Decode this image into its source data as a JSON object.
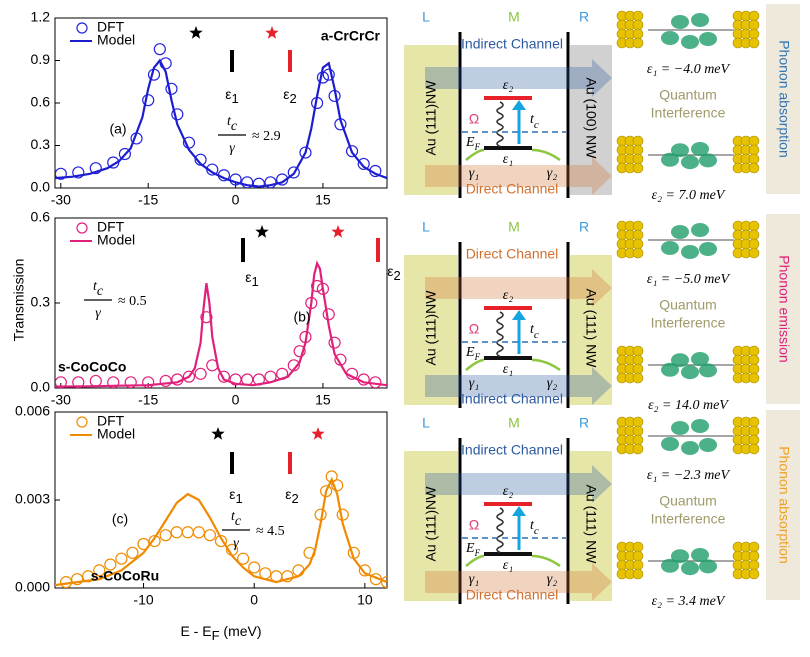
{
  "chart_data": [
    {
      "type": "line",
      "panel_label": "(a)",
      "molecule": "a-CrCrCr",
      "ratio": {
        "numerator": "t",
        "numerator_sub": "c",
        "denominator": "γ",
        "relation": "≈ 2.9"
      },
      "levels": [
        {
          "symbol": "ε",
          "sub": "1",
          "color": "#000000"
        },
        {
          "symbol": "ε",
          "sub": "2",
          "color": "#e8202a"
        }
      ],
      "stars": [
        {
          "color": "#000000"
        },
        {
          "color": "#e8202a"
        }
      ],
      "xlim": [
        -31,
        26
      ],
      "ylim": [
        0,
        1.2
      ],
      "xticks": [
        -30,
        -15,
        0,
        15
      ],
      "yticks": [
        {
          "value": 0,
          "label": "0.0"
        },
        0.3,
        0.6,
        0.9,
        1.2
      ],
      "legend": "upper left",
      "series": [
        {
          "name": "DFT",
          "color": "#2424e0",
          "marker": "circle",
          "x": [
            -30,
            -27,
            -24,
            -21,
            -19,
            -17,
            -15,
            -14,
            -13,
            -12,
            -11,
            -10,
            -8,
            -6,
            -4,
            -2,
            0,
            2,
            4,
            6,
            8,
            10,
            12,
            14,
            15,
            16,
            17,
            18,
            20,
            22,
            24
          ],
          "values": [
            0.1,
            0.11,
            0.14,
            0.18,
            0.24,
            0.35,
            0.62,
            0.8,
            0.98,
            0.88,
            0.7,
            0.52,
            0.32,
            0.2,
            0.13,
            0.09,
            0.06,
            0.04,
            0.03,
            0.04,
            0.06,
            0.11,
            0.25,
            0.6,
            0.78,
            0.8,
            0.65,
            0.45,
            0.26,
            0.17,
            0.12
          ]
        },
        {
          "name": "Model",
          "color": "#1c1cd0",
          "x": [
            -31,
            -28,
            -25,
            -22,
            -20,
            -18,
            -16,
            -15,
            -14,
            -13,
            -12,
            -11,
            -10,
            -8,
            -6,
            -4,
            -2,
            0,
            2,
            4,
            6,
            8,
            10,
            12,
            13,
            14,
            15,
            16,
            17,
            18,
            20,
            22,
            24,
            26
          ],
          "values": [
            0.07,
            0.08,
            0.1,
            0.14,
            0.19,
            0.28,
            0.5,
            0.7,
            0.85,
            0.9,
            0.82,
            0.62,
            0.45,
            0.27,
            0.17,
            0.11,
            0.07,
            0.04,
            0.02,
            0.01,
            0.02,
            0.04,
            0.1,
            0.25,
            0.42,
            0.65,
            0.85,
            0.88,
            0.7,
            0.48,
            0.25,
            0.15,
            0.1,
            0.07
          ]
        }
      ]
    },
    {
      "type": "line",
      "panel_label": "(b)",
      "molecule": "s-CoCoCo",
      "ylabel": "Transmission",
      "ratio": {
        "numerator": "t",
        "numerator_sub": "c",
        "denominator": "γ",
        "relation": "≈ 0.5"
      },
      "levels": [
        {
          "symbol": "ε",
          "sub": "1",
          "color": "#000000"
        },
        {
          "symbol": "ε",
          "sub": "2",
          "color": "#e8202a"
        }
      ],
      "stars": [
        {
          "color": "#000000"
        },
        {
          "color": "#e8202a"
        }
      ],
      "xlim": [
        -31,
        26
      ],
      "ylim": [
        0,
        0.6
      ],
      "xticks": [
        -30,
        -15,
        0,
        15
      ],
      "yticks": [
        {
          "value": 0,
          "label": "0.0"
        },
        0.3,
        0.6
      ],
      "legend": "upper left",
      "series": [
        {
          "name": "DFT",
          "color": "#e0207a",
          "marker": "circle",
          "x": [
            -30,
            -27,
            -24,
            -21,
            -18,
            -15,
            -12,
            -10,
            -8,
            -6,
            -5,
            -4,
            -2,
            0,
            2,
            4,
            6,
            8,
            10,
            11,
            12,
            13,
            14,
            15,
            16,
            17,
            18,
            20,
            22,
            24
          ],
          "values": [
            0.02,
            0.02,
            0.025,
            0.02,
            0.02,
            0.02,
            0.025,
            0.03,
            0.04,
            0.05,
            0.25,
            0.08,
            0.04,
            0.03,
            0.03,
            0.03,
            0.04,
            0.05,
            0.08,
            0.13,
            0.18,
            0.3,
            0.36,
            0.35,
            0.26,
            0.16,
            0.1,
            0.05,
            0.03,
            0.02
          ]
        },
        {
          "name": "Model",
          "color": "#e0207a",
          "x": [
            -31,
            -25,
            -20,
            -15,
            -10,
            -8,
            -7,
            -6,
            -5.5,
            -5,
            -4.5,
            -4,
            -3,
            -2,
            0,
            3,
            6,
            9,
            11,
            12,
            13,
            13.5,
            14,
            14.5,
            15,
            16,
            17,
            19,
            22,
            26
          ],
          "values": [
            0.005,
            0.006,
            0.008,
            0.01,
            0.02,
            0.04,
            0.07,
            0.16,
            0.28,
            0.37,
            0.3,
            0.18,
            0.07,
            0.03,
            0.015,
            0.01,
            0.02,
            0.04,
            0.09,
            0.16,
            0.3,
            0.4,
            0.44,
            0.42,
            0.35,
            0.22,
            0.12,
            0.05,
            0.02,
            0.01
          ]
        }
      ]
    },
    {
      "type": "line",
      "panel_label": "(c)",
      "molecule": "s-CoCoRu",
      "xlabel": {
        "text": "E - E",
        "sub": "F",
        "unit": " (meV)"
      },
      "ratio": {
        "numerator": "t",
        "numerator_sub": "c",
        "denominator": "γ",
        "relation": "≈ 4.5"
      },
      "levels": [
        {
          "symbol": "ε",
          "sub": "1",
          "color": "#000000"
        },
        {
          "symbol": "ε",
          "sub": "2",
          "color": "#e8202a"
        }
      ],
      "stars": [
        {
          "color": "#000000"
        },
        {
          "color": "#e8202a"
        }
      ],
      "xlim": [
        -18,
        12
      ],
      "ylim": [
        0,
        0.006
      ],
      "xticks": [
        -10,
        0,
        10
      ],
      "yticks": [
        {
          "value": 0,
          "label": "0.000"
        },
        0.003,
        0.006
      ],
      "legend": "upper left",
      "series": [
        {
          "name": "DFT",
          "color": "#f08a00",
          "marker": "circle",
          "x": [
            -17,
            -16,
            -15,
            -14,
            -13,
            -12,
            -11,
            -10,
            -9,
            -8,
            -7,
            -6,
            -5,
            -4,
            -3,
            -2,
            -1,
            0,
            1,
            2,
            3,
            4,
            5,
            6,
            6.5,
            7,
            7.5,
            8,
            9,
            10,
            11,
            12
          ],
          "values": [
            0.0002,
            0.0003,
            0.0004,
            0.0006,
            0.0008,
            0.001,
            0.0012,
            0.0015,
            0.0016,
            0.0018,
            0.0019,
            0.0019,
            0.0019,
            0.0018,
            0.0016,
            0.0013,
            0.001,
            0.0007,
            0.0005,
            0.0004,
            0.0004,
            0.0006,
            0.0012,
            0.0025,
            0.0033,
            0.0038,
            0.0035,
            0.0025,
            0.0012,
            0.0006,
            0.0003,
            0.0002
          ]
        },
        {
          "name": "Model",
          "color": "#f08a00",
          "x": [
            -18,
            -16,
            -14,
            -12,
            -10,
            -9,
            -8,
            -7,
            -6,
            -5,
            -4,
            -3,
            -2,
            -1,
            0,
            2,
            4,
            5,
            5.5,
            6,
            6.5,
            7,
            7.5,
            8,
            9,
            10,
            12
          ],
          "values": [
            0.0001,
            0.0002,
            0.0003,
            0.0006,
            0.0012,
            0.0017,
            0.0023,
            0.0029,
            0.0032,
            0.003,
            0.0024,
            0.0017,
            0.0011,
            0.0007,
            0.0004,
            0.0002,
            0.0004,
            0.0008,
            0.0013,
            0.0022,
            0.0033,
            0.0037,
            0.0032,
            0.0022,
            0.001,
            0.0005,
            0.0002
          ]
        }
      ]
    }
  ],
  "diagrams": [
    {
      "left": "L",
      "middle": "M",
      "right": "R",
      "top_channel": {
        "text": "Indirect Channel",
        "color": "#2c5aa0"
      },
      "bottom_channel": {
        "text": "Direct Channel",
        "color": "#d07030"
      },
      "left_wire": "Au (111)NW",
      "right_wire": "Au (100) NW",
      "right_wire_fill": "#c9c9c9",
      "upper_level": "ε₂",
      "lower_level": "ε₁",
      "hopping": {
        "text": "t",
        "sub": "c"
      },
      "phonon": "Ω",
      "fermi": {
        "text": "E",
        "sub": "F"
      },
      "gamma_left": "γ₁",
      "gamma_right": "γ₂",
      "energies": [
        "ε₁ = −4.0 meV",
        "ε₂ = 7.0 meV"
      ],
      "interference": [
        "Quantum",
        "Interference"
      ],
      "process": "Phonon absorption",
      "process_color": "#2e75b6"
    },
    {
      "left": "L",
      "middle": "M",
      "right": "R",
      "top_channel": {
        "text": "Direct Channel",
        "color": "#d07030"
      },
      "bottom_channel": {
        "text": "Indirect Channel",
        "color": "#2c5aa0"
      },
      "left_wire": "Au (111)NW",
      "right_wire": "Au (111) NW",
      "right_wire_fill": "#e2e29a",
      "upper_level": "ε₂",
      "lower_level": "ε₁",
      "hopping": {
        "text": "t",
        "sub": "c"
      },
      "phonon": "Ω",
      "fermi": {
        "text": "E",
        "sub": "F"
      },
      "gamma_left": "γ₁",
      "gamma_right": "γ₂",
      "energies": [
        "ε₁ = −5.0 meV",
        "ε₂ = 14.0 meV"
      ],
      "interference": [
        "Quantum",
        "Interference"
      ],
      "process": "Phonon emission",
      "process_color": "#e0207a"
    },
    {
      "left": "L",
      "middle": "M",
      "right": "R",
      "top_channel": {
        "text": "Indirect Channel",
        "color": "#2c5aa0"
      },
      "bottom_channel": {
        "text": "Direct Channel",
        "color": "#d07030"
      },
      "left_wire": "Au (111)NW",
      "right_wire": "Au (111) NW",
      "right_wire_fill": "#e2e29a",
      "upper_level": "ε₂",
      "lower_level": "ε₁",
      "hopping": {
        "text": "t",
        "sub": "c"
      },
      "phonon": "Ω",
      "fermi": {
        "text": "E",
        "sub": "F"
      },
      "gamma_left": "γ₁",
      "gamma_right": "γ₂",
      "energies": [
        "ε₁ = −2.3 meV",
        "ε₂ = 3.4 meV"
      ],
      "interference": [
        "Quantum",
        "Interference"
      ],
      "process": "Phonon absorption",
      "process_color": "#f0a020"
    }
  ]
}
